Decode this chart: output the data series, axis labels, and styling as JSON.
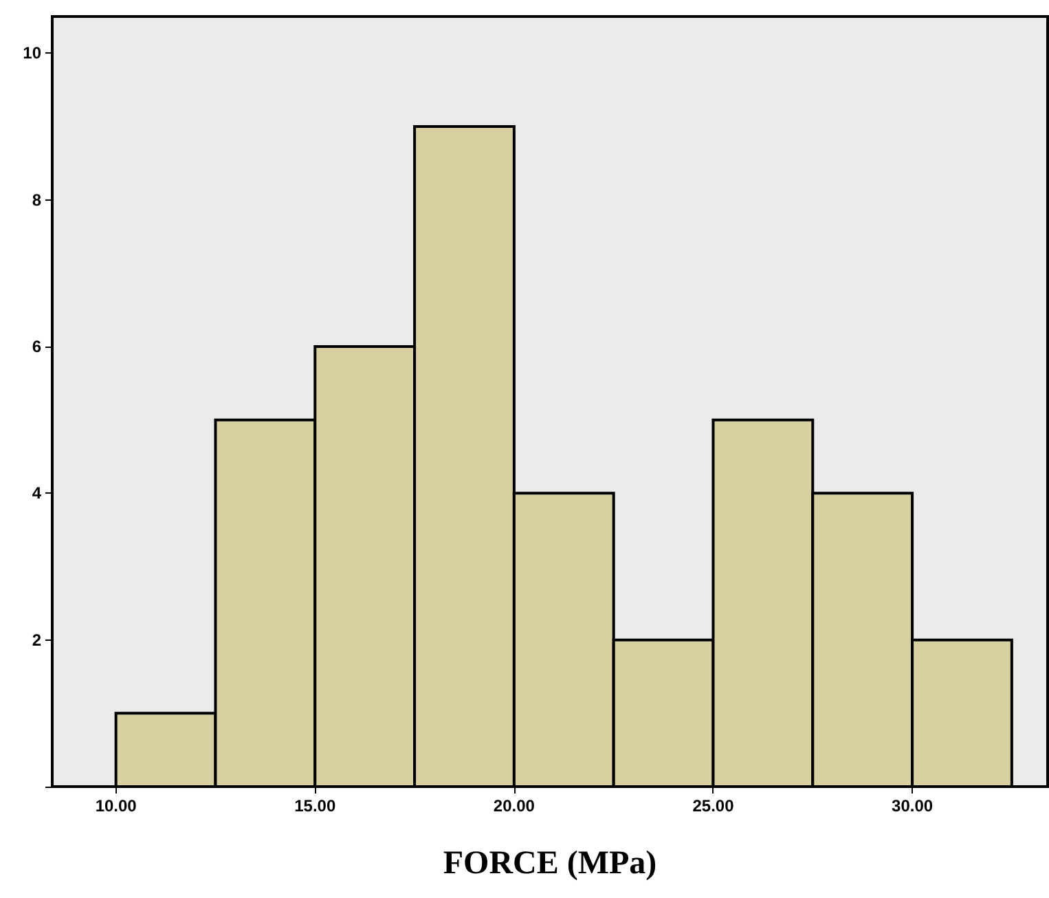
{
  "chart_data": {
    "type": "histogram",
    "xlabel": "FORCE (MPa)",
    "bins": [
      10,
      12.5,
      15,
      17.5,
      20,
      22.5,
      25,
      27.5,
      30,
      32.5
    ],
    "values": [
      1,
      5,
      6,
      9,
      4,
      2,
      5,
      4,
      2
    ],
    "color": "#d8d0a0",
    "xlim": [
      8.4,
      33.4
    ],
    "xticks": [
      {
        "value": 10,
        "label": "10.00"
      },
      {
        "value": 15,
        "label": "15.00"
      },
      {
        "value": 20,
        "label": "20.00"
      },
      {
        "value": 25,
        "label": "25.00"
      },
      {
        "value": 30,
        "label": "30.00"
      }
    ],
    "ylim": [
      0,
      10.5
    ],
    "yticks": [
      {
        "value": 0,
        "label": null
      },
      2,
      4,
      6,
      8,
      10
    ],
    "grid": false
  }
}
